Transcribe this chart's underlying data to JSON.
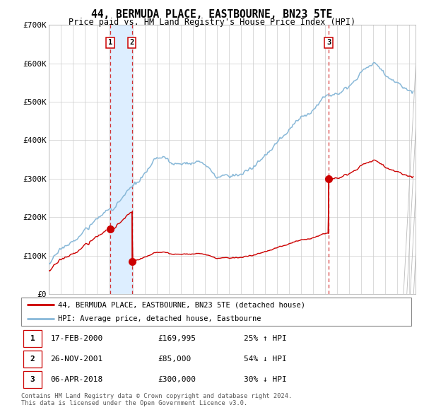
{
  "title": "44, BERMUDA PLACE, EASTBOURNE, BN23 5TE",
  "subtitle": "Price paid vs. HM Land Registry's House Price Index (HPI)",
  "bg_color": "#ffffff",
  "plot_bg_color": "#ffffff",
  "grid_color": "#cccccc",
  "hpi_color": "#88b8d8",
  "price_color": "#cc0000",
  "shade_color": "#ddeeff",
  "transactions": [
    {
      "id": "1",
      "date_num": 2000.12,
      "price": 169995
    },
    {
      "id": "2",
      "date_num": 2001.92,
      "price": 85000
    },
    {
      "id": "3",
      "date_num": 2018.27,
      "price": 300000
    }
  ],
  "xmin": 1995.0,
  "xmax": 2025.5,
  "ymin": 0,
  "ymax": 700000,
  "yticks": [
    0,
    100000,
    200000,
    300000,
    400000,
    500000,
    600000,
    700000
  ],
  "ytick_labels": [
    "£0",
    "£100K",
    "£200K",
    "£300K",
    "£400K",
    "£500K",
    "£600K",
    "£700K"
  ],
  "xticks": [
    1995,
    1996,
    1997,
    1998,
    1999,
    2000,
    2001,
    2002,
    2003,
    2004,
    2005,
    2006,
    2007,
    2008,
    2009,
    2010,
    2011,
    2012,
    2013,
    2014,
    2015,
    2016,
    2017,
    2018,
    2019,
    2020,
    2021,
    2022,
    2023,
    2024,
    2025
  ],
  "legend_entries": [
    {
      "label": "44, BERMUDA PLACE, EASTBOURNE, BN23 5TE (detached house)",
      "color": "#cc0000"
    },
    {
      "label": "HPI: Average price, detached house, Eastbourne",
      "color": "#88b8d8"
    }
  ],
  "table": [
    {
      "id": "1",
      "date": "17-FEB-2000",
      "price": "£169,995",
      "hpi": "25% ↑ HPI"
    },
    {
      "id": "2",
      "date": "26-NOV-2001",
      "price": "£85,000",
      "hpi": "54% ↓ HPI"
    },
    {
      "id": "3",
      "date": "06-APR-2018",
      "price": "£300,000",
      "hpi": "30% ↓ HPI"
    }
  ],
  "footer": "Contains HM Land Registry data © Crown copyright and database right 2024.\nThis data is licensed under the Open Government Licence v3.0."
}
